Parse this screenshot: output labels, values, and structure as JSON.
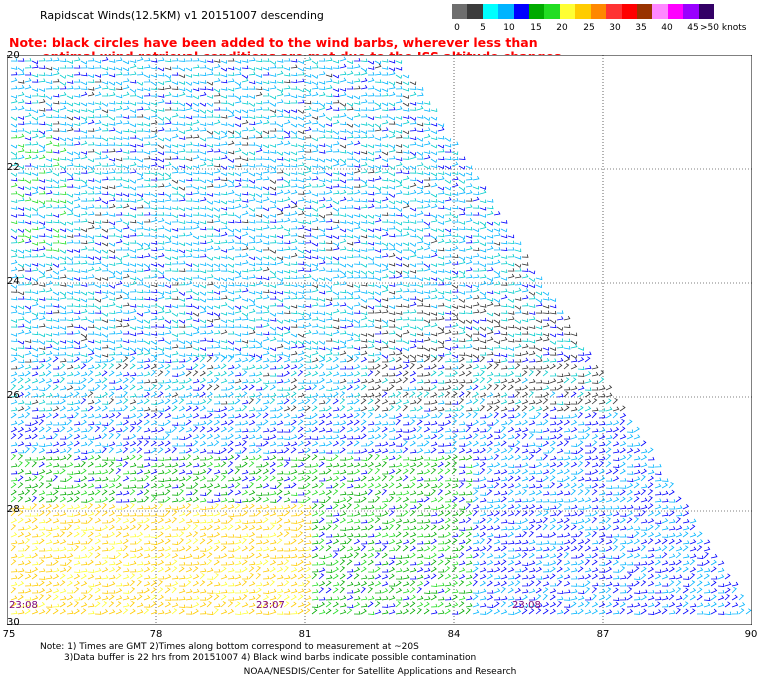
{
  "title": "Rapidscat Winds(12.5KM) v1 20151007 descending",
  "note": {
    "line1": "Note: black circles have been added to the wind barbs, wherever less than",
    "line2": "optimal wind retrieval conditions are met due to the ISS altitude changes."
  },
  "legend": {
    "labels": [
      "0",
      "5",
      "10",
      "15",
      "20",
      "25",
      "30",
      "35",
      "40",
      "45",
      ">50 knots"
    ],
    "colors": [
      "#6e6e6e",
      "#3c3c3c",
      "#00ffff",
      "#00b4ff",
      "#0000ff",
      "#00aa00",
      "#22dd22",
      "#ffff33",
      "#ffcc00",
      "#ff8800",
      "#ff3333",
      "#ff0000",
      "#993300",
      "#ff88ff",
      "#ff00ff",
      "#9900ff",
      "#330066"
    ]
  },
  "lat_ticks": [
    "20",
    "22",
    "24",
    "26",
    "28",
    "30"
  ],
  "lon_ticks": [
    "75",
    "78",
    "81",
    "84",
    "87",
    "90"
  ],
  "time_labels": [
    "23:08",
    "23:07",
    "23:08"
  ],
  "footer": {
    "line1": "Note: 1) Times are GMT 2)Times along bottom correspond to measurement at ~20S",
    "line2": "3)Data buffer is 22 hrs from 20151007 4) Black wind barbs indicate possible contamination",
    "credit": "NOAA/NESDIS/Center for Satellite Applications and Research"
  }
}
